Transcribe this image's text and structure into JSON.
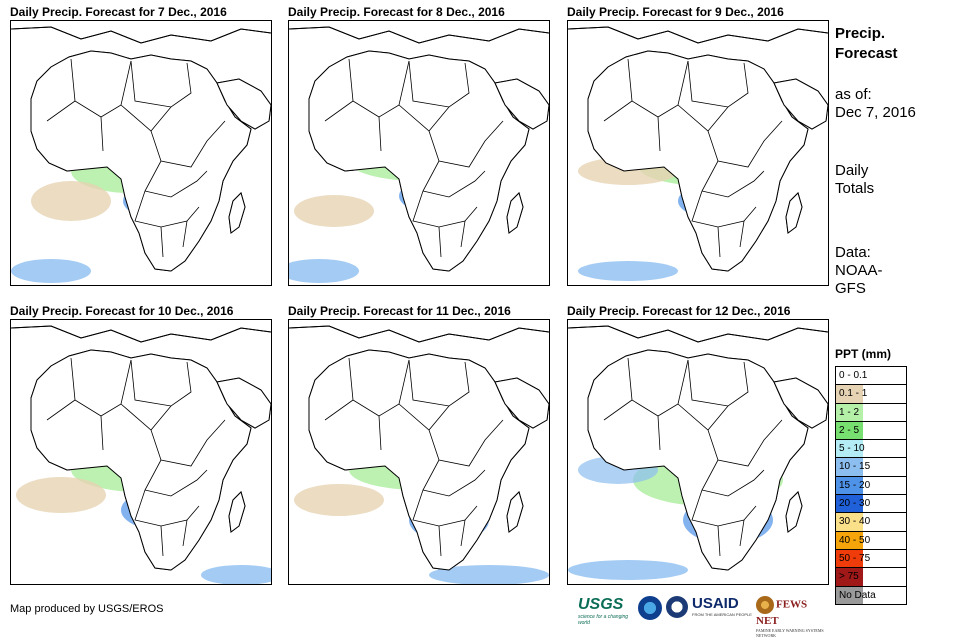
{
  "panels": [
    {
      "title": "Daily Precip. Forecast for 7 Dec., 2016"
    },
    {
      "title": "Daily Precip. Forecast for 8 Dec., 2016"
    },
    {
      "title": "Daily Precip. Forecast for 9 Dec., 2016"
    },
    {
      "title": "Daily Precip. Forecast for 10 Dec., 2016"
    },
    {
      "title": "Daily Precip. Forecast for 11 Dec., 2016"
    },
    {
      "title": "Daily Precip. Forecast for 12 Dec., 2016"
    }
  ],
  "sidebar": {
    "title_line1": "Precip.",
    "title_line2": "Forecast",
    "asof_label": "as of:",
    "asof_date": "Dec 7, 2016",
    "daily_line1": "Daily",
    "daily_line2": "Totals",
    "data_label": "Data:",
    "data_source1": "NOAA-",
    "data_source2": "GFS"
  },
  "legend": {
    "title": "PPT (mm)",
    "items": [
      {
        "label": "0 - 0.1",
        "color": "#ffffff"
      },
      {
        "label": "0.1 - 1",
        "color": "#e6d3b3"
      },
      {
        "label": "1 - 2",
        "color": "#b5f0a8"
      },
      {
        "label": "2 - 5",
        "color": "#78e070"
      },
      {
        "label": "5 - 10",
        "color": "#b3ecf5"
      },
      {
        "label": "10 - 15",
        "color": "#8cbef0"
      },
      {
        "label": "15 - 20",
        "color": "#4f93e8"
      },
      {
        "label": "20 - 30",
        "color": "#2060d8"
      },
      {
        "label": "30 - 40",
        "color": "#fbe08a"
      },
      {
        "label": "40 - 50",
        "color": "#f5a40a"
      },
      {
        "label": "50 - 75",
        "color": "#f03c0a"
      },
      {
        "label": "> 75",
        "color": "#a01818"
      },
      {
        "label": "No Data",
        "color": "#9a9a9a"
      }
    ]
  },
  "credit": "Map produced by USGS/EROS",
  "logos": {
    "usgs": "USGS",
    "usgs_tagline": "science for a changing world",
    "noaa": "noaa-logo",
    "dos": "state-dept-seal",
    "usaid": "USAID",
    "usaid_tagline": "FROM THE AMERICAN PEOPLE",
    "fews": "FEWS NET",
    "fews_tagline": "FAMINE EARLY WARNING SYSTEMS NETWORK"
  }
}
